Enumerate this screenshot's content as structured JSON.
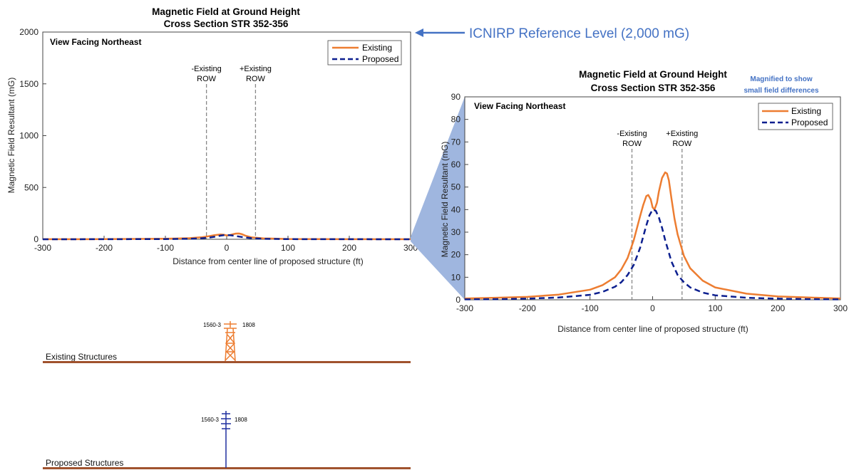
{
  "chart_data": [
    {
      "type": "line",
      "title": "Magnetic Field at Ground Height",
      "subtitle": "Cross Section  STR 352-356",
      "view_label": "View Facing Northeast",
      "xlabel": "Distance from center line of proposed structure (ft)",
      "ylabel": "Magnetic Field Resultant (mG)",
      "xlim": [
        -300,
        300
      ],
      "ylim": [
        0,
        2000
      ],
      "xticks": [
        "-300",
        "-200",
        "-100",
        "0",
        "100",
        "200",
        "300"
      ],
      "yticks": [
        "0",
        "500",
        "1000",
        "1500",
        "2000"
      ],
      "legend_position": "top-right",
      "grid": false,
      "row_lines": [
        {
          "x": -33,
          "label_line1": "-Existing",
          "label_line2": "ROW"
        },
        {
          "x": 47,
          "label_line1": "+Existing",
          "label_line2": "ROW"
        }
      ],
      "series": [
        {
          "name": "Existing",
          "color": "#ed7d31",
          "style": "solid",
          "x": [
            -300,
            -200,
            -100,
            -60,
            -40,
            -30,
            -20,
            -10,
            -5,
            0,
            5,
            10,
            15,
            20,
            25,
            30,
            40,
            60,
            100,
            200,
            300
          ],
          "y": [
            0.6,
            1.2,
            4.5,
            11,
            20,
            29,
            40,
            46,
            44,
            37,
            40,
            48,
            55,
            56,
            49,
            36,
            19,
            9,
            3,
            1,
            0.6
          ]
        },
        {
          "name": "Proposed",
          "color": "#0c1f8f",
          "style": "dashed",
          "x": [
            -300,
            -200,
            -100,
            -60,
            -40,
            -30,
            -20,
            -10,
            -5,
            0,
            5,
            10,
            20,
            30,
            40,
            60,
            100,
            200,
            300
          ],
          "y": [
            0.2,
            0.4,
            2,
            5,
            10,
            15,
            24,
            35,
            39,
            40,
            39,
            36,
            26,
            17,
            11,
            5,
            1.5,
            0.4,
            0.2
          ]
        }
      ]
    },
    {
      "type": "line",
      "title": "Magnetic Field at Ground Height",
      "subtitle": "Cross Section  STR 352-356",
      "view_label": "View Facing Northeast",
      "xlabel": "Distance from center line of proposed structure (ft)",
      "ylabel": "Magnetic Field Resultant (mG)",
      "xlim": [
        -300,
        300
      ],
      "ylim": [
        0,
        90
      ],
      "xticks": [
        "-300",
        "-200",
        "-100",
        "0",
        "100",
        "200",
        "300"
      ],
      "yticks": [
        "0",
        "10",
        "20",
        "30",
        "40",
        "50",
        "60",
        "70",
        "80",
        "90"
      ],
      "legend_position": "top-right",
      "grid": false,
      "row_lines": [
        {
          "x": -33,
          "label_line1": "-Existing",
          "label_line2": "ROW"
        },
        {
          "x": 47,
          "label_line1": "+Existing",
          "label_line2": "ROW"
        }
      ],
      "series": [
        {
          "name": "Existing",
          "color": "#ed7d31",
          "style": "solid",
          "x": [
            -300,
            -250,
            -200,
            -150,
            -100,
            -80,
            -60,
            -50,
            -40,
            -30,
            -20,
            -15,
            -10,
            -7,
            -3,
            0,
            3,
            7,
            10,
            15,
            20,
            23,
            26,
            30,
            35,
            40,
            50,
            60,
            80,
            100,
            150,
            200,
            250,
            300
          ],
          "y": [
            0.6,
            0.9,
            1.3,
            2.3,
            4.5,
            6.5,
            10,
            13.5,
            18.5,
            26.5,
            37,
            42,
            46,
            46.5,
            44.5,
            41,
            40,
            43,
            48,
            54,
            56.5,
            56,
            53,
            45,
            36,
            29,
            19.5,
            14,
            8.5,
            5.5,
            2.7,
            1.5,
            1,
            0.6
          ]
        },
        {
          "name": "Proposed",
          "color": "#0c1f8f",
          "style": "dashed",
          "x": [
            -300,
            -250,
            -200,
            -150,
            -100,
            -80,
            -60,
            -50,
            -40,
            -30,
            -20,
            -15,
            -10,
            -5,
            0,
            5,
            10,
            15,
            20,
            30,
            40,
            50,
            60,
            80,
            100,
            150,
            200,
            250,
            300
          ],
          "y": [
            0.2,
            0.3,
            0.5,
            1,
            2.2,
            3.5,
            5.8,
            7.8,
            11,
            15.5,
            23,
            28,
            33,
            37.5,
            40,
            39.5,
            36.5,
            32,
            26.5,
            17,
            11,
            7.8,
            5.5,
            3.2,
            2,
            0.9,
            0.5,
            0.3,
            0.2
          ]
        }
      ]
    }
  ],
  "annotation": {
    "reference_label": "ICNIRP Reference Level (2,000 mG)",
    "magnified_note_line1": "Magnified to show",
    "magnified_note_line2": "small field differences",
    "arrow_color": "#4472c4",
    "zoom_fill": "#9fb6df"
  },
  "structures": {
    "existing_label": "Existing Structures",
    "proposed_label": "Proposed Structures",
    "existing_color": "#ed7d31",
    "proposed_color": "#1f2f9f",
    "ground_color": "#a0522d",
    "existing_left_circuit": "1560-3",
    "existing_right_circuit": "1808",
    "proposed_left_circuit": "1560-3",
    "proposed_right_circuit": "1808"
  }
}
